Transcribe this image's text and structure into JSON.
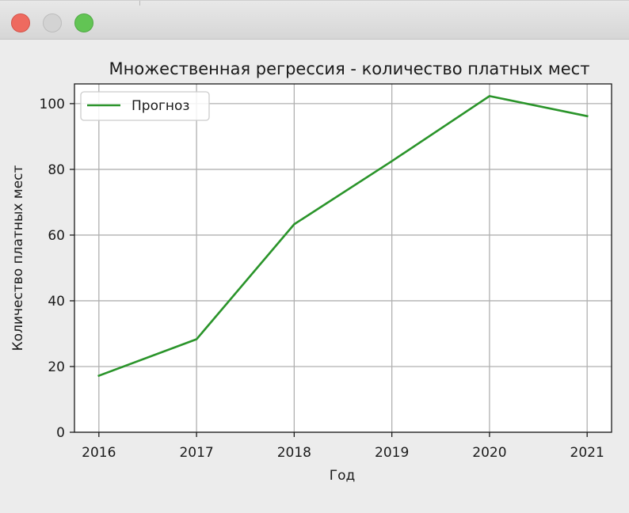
{
  "window": {
    "buttons": [
      "close",
      "minimize",
      "maximize"
    ]
  },
  "colors": {
    "line": "#2a942a",
    "grid": "#b0b0b0",
    "axis": "#1a1a1a",
    "plot_bg": "#ffffff",
    "window_bg": "#ececec"
  },
  "chart_data": {
    "type": "line",
    "title": "Множественная регрессия - количество платных мест",
    "xlabel": "Год",
    "ylabel": "Количество платных мест",
    "x": [
      2016,
      2017,
      2018,
      2019,
      2020,
      2021
    ],
    "xticks": [
      "2016",
      "2017",
      "2018",
      "2019",
      "2020",
      "2021"
    ],
    "yticks": [
      "0",
      "20",
      "40",
      "60",
      "80",
      "100"
    ],
    "ylim": [
      0,
      106
    ],
    "xlim": [
      2015.75,
      2021.25
    ],
    "grid": true,
    "legend_position": "top-left",
    "series": [
      {
        "name": "Прогноз",
        "values": [
          17.2,
          28.3,
          63.3,
          82.5,
          102.3,
          96.2
        ],
        "color": "#2a942a"
      }
    ]
  }
}
